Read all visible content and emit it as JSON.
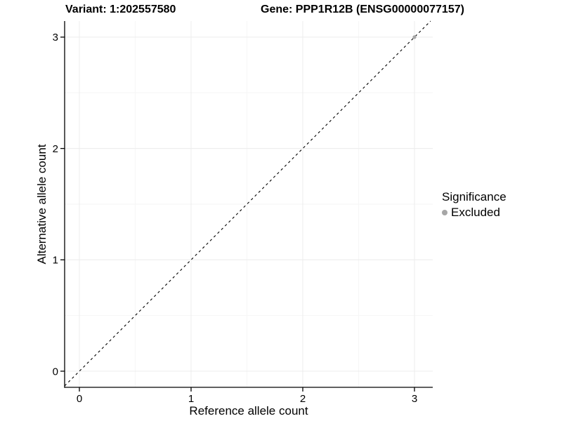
{
  "header": {
    "variant_title": "Variant: 1:202557580",
    "gene_title": "Gene: PPP1R12B (ENSG00000077157)"
  },
  "axes": {
    "x": {
      "label": "Reference allele count"
    },
    "y": {
      "label": "Alternative allele count"
    }
  },
  "legend": {
    "title": "Significance",
    "items": [
      {
        "label": "Excluded",
        "color": "#a6a6a6",
        "marker": "circle-icon"
      }
    ]
  },
  "chart_data": {
    "type": "scatter",
    "title_left": "Variant: 1:202557580",
    "title_right": "Gene: PPP1R12B (ENSG00000077157)",
    "xlabel": "Reference allele count",
    "ylabel": "Alternative allele count",
    "xlim": [
      -0.15,
      3.15
    ],
    "ylim": [
      -0.15,
      3.15
    ],
    "x_ticks": [
      0,
      1,
      2,
      3
    ],
    "y_ticks": [
      0,
      1,
      2,
      3
    ],
    "x_minor_ticks": [
      0.5,
      1.5,
      2.5
    ],
    "y_minor_ticks": [
      0.5,
      1.5,
      2.5
    ],
    "grid": true,
    "legend_position": "right",
    "legend_title": "Significance",
    "series": [
      {
        "name": "Excluded",
        "color": "#a6a6a6",
        "points": [
          {
            "x": 3,
            "y": 3
          }
        ]
      }
    ],
    "reference_line": {
      "type": "identity y=x",
      "style": "dashed",
      "color": "#000000"
    },
    "colors": {
      "grid_major": "#ececec",
      "grid_minor": "#f6f6f6",
      "axis": "#000000",
      "tick_label": "#000000",
      "background": "#ffffff"
    }
  }
}
